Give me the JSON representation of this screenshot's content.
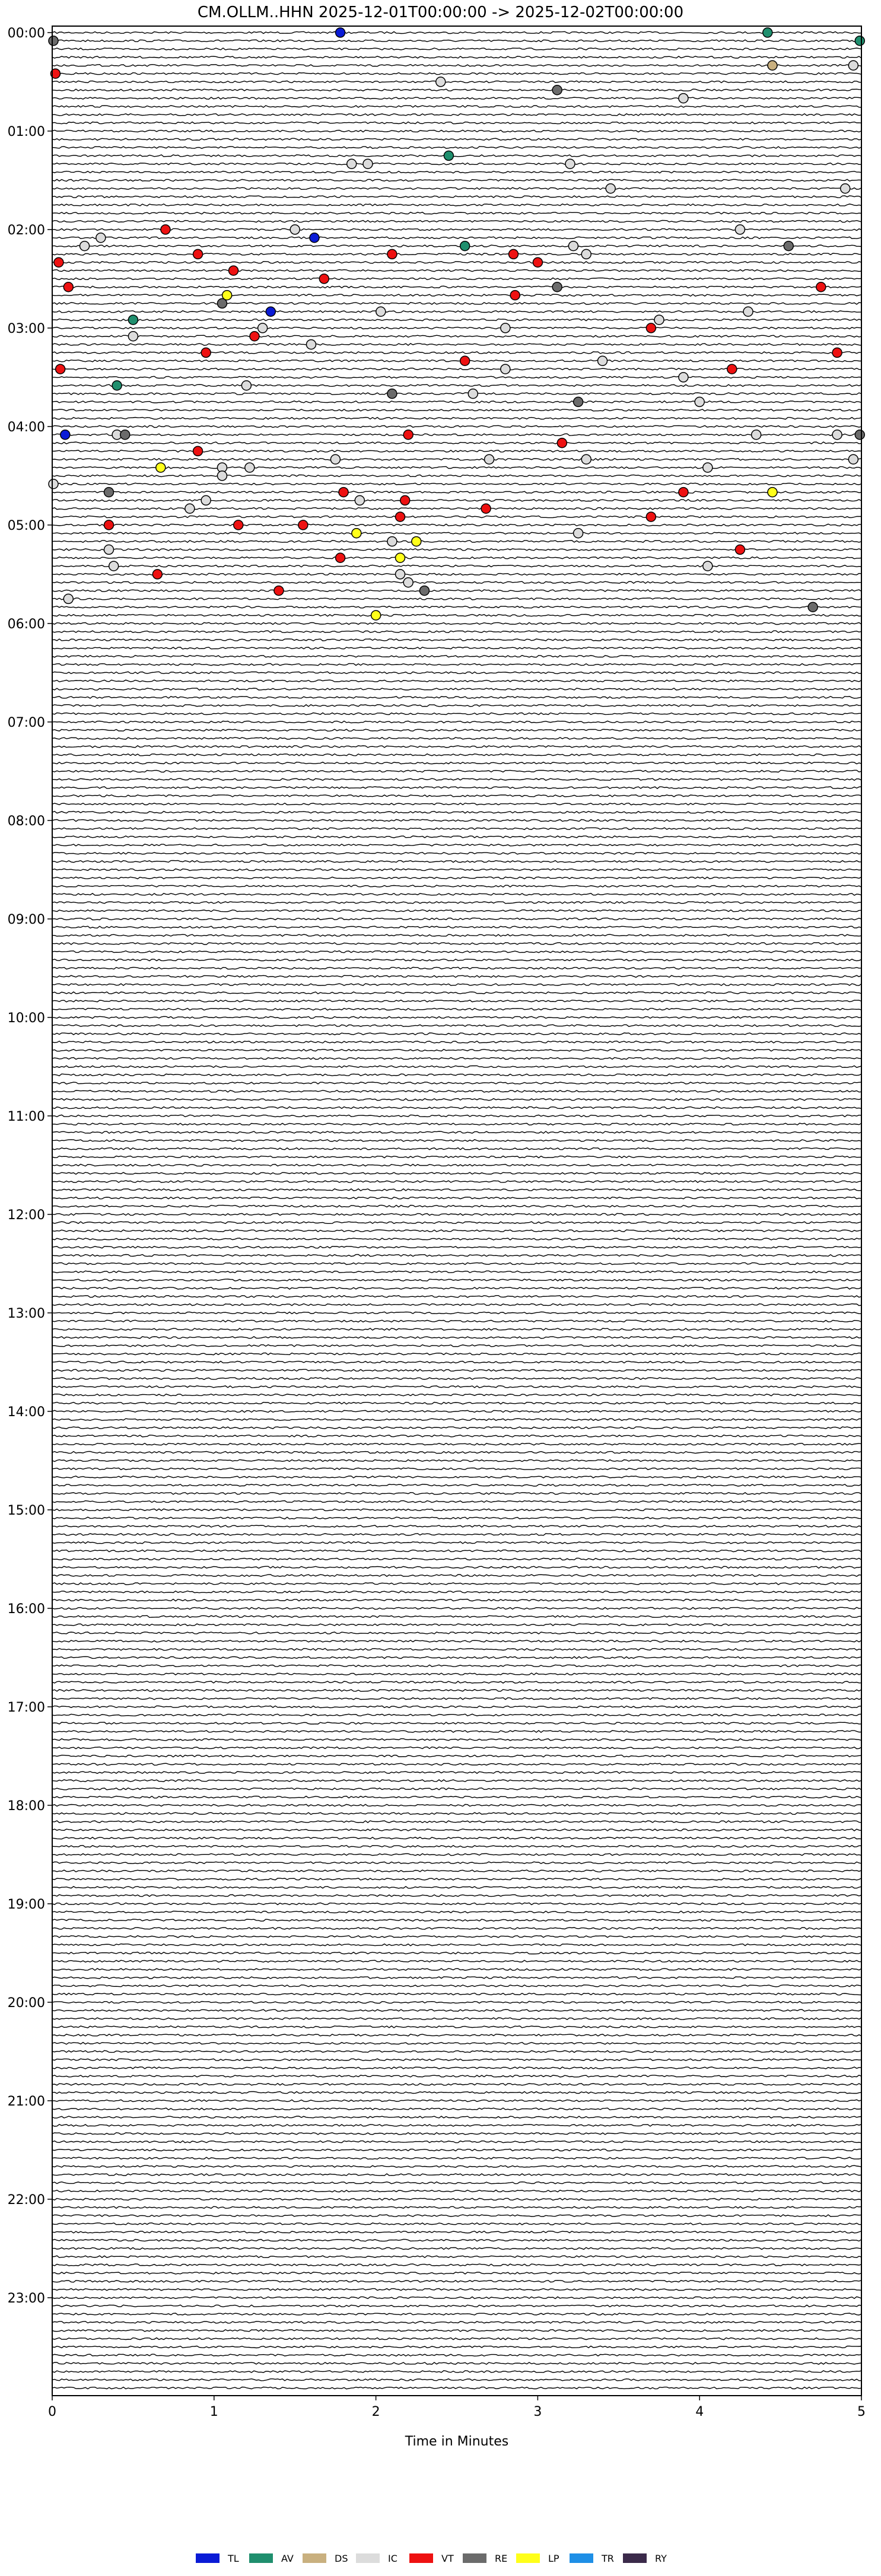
{
  "chart_data": {
    "type": "helicorder",
    "title": "CM.OLLM..HHN  2025-12-01T00:00:00 -> 2025-12-02T00:00:00",
    "xlabel": "Time in Minutes",
    "xlim": [
      0,
      5
    ],
    "x_ticks": [
      "0",
      "1",
      "2",
      "3",
      "4",
      "5"
    ],
    "y_ticks": [
      "00:00",
      "01:00",
      "02:00",
      "03:00",
      "04:00",
      "05:00",
      "06:00",
      "07:00",
      "08:00",
      "09:00",
      "10:00",
      "11:00",
      "12:00",
      "13:00",
      "14:00",
      "15:00",
      "16:00",
      "17:00",
      "18:00",
      "19:00",
      "20:00",
      "21:00",
      "22:00",
      "23:00"
    ],
    "traces_per_hour": 12,
    "minutes_per_trace": 5,
    "legend": [
      {
        "code": "TL",
        "color": "#0a1bd6"
      },
      {
        "code": "AV",
        "color": "#1f8f6e"
      },
      {
        "code": "DS",
        "color": "#c9b07f"
      },
      {
        "code": "IC",
        "color": "#dcdcdc"
      },
      {
        "code": "VT",
        "color": "#ee1111"
      },
      {
        "code": "RE",
        "color": "#6b6b6b"
      },
      {
        "code": "LP",
        "color": "#ffff1a"
      },
      {
        "code": "TR",
        "color": "#1e8fe6"
      },
      {
        "code": "RY",
        "color": "#3b2a4a"
      }
    ],
    "events": [
      {
        "t": "00:00",
        "x": 1.78,
        "c": "TL"
      },
      {
        "t": "00:00",
        "x": 4.42,
        "c": "AV"
      },
      {
        "t": "00:05",
        "x": 0.0,
        "c": "RE"
      },
      {
        "t": "00:05",
        "x": 4.99,
        "c": "AV"
      },
      {
        "t": "00:20",
        "x": 4.45,
        "c": "DS"
      },
      {
        "t": "00:20",
        "x": 4.95,
        "c": "IC"
      },
      {
        "t": "00:25",
        "x": 0.02,
        "c": "VT"
      },
      {
        "t": "00:30",
        "x": 2.4,
        "c": "IC"
      },
      {
        "t": "00:35",
        "x": 3.12,
        "c": "RE"
      },
      {
        "t": "00:40",
        "x": 3.9,
        "c": "IC"
      },
      {
        "t": "01:15",
        "x": 2.45,
        "c": "AV"
      },
      {
        "t": "01:20",
        "x": 1.85,
        "c": "IC"
      },
      {
        "t": "01:20",
        "x": 1.95,
        "c": "IC"
      },
      {
        "t": "01:20",
        "x": 3.2,
        "c": "IC"
      },
      {
        "t": "01:35",
        "x": 3.45,
        "c": "IC"
      },
      {
        "t": "01:35",
        "x": 4.9,
        "c": "IC"
      },
      {
        "t": "02:00",
        "x": 0.7,
        "c": "VT"
      },
      {
        "t": "02:00",
        "x": 1.5,
        "c": "IC"
      },
      {
        "t": "02:00",
        "x": 4.25,
        "c": "IC"
      },
      {
        "t": "02:05",
        "x": 0.3,
        "c": "IC"
      },
      {
        "t": "02:05",
        "x": 1.62,
        "c": "TL"
      },
      {
        "t": "02:10",
        "x": 0.2,
        "c": "IC"
      },
      {
        "t": "02:10",
        "x": 2.55,
        "c": "AV"
      },
      {
        "t": "02:10",
        "x": 3.22,
        "c": "IC"
      },
      {
        "t": "02:10",
        "x": 4.55,
        "c": "RE"
      },
      {
        "t": "02:15",
        "x": 0.9,
        "c": "VT"
      },
      {
        "t": "02:15",
        "x": 2.1,
        "c": "VT"
      },
      {
        "t": "02:15",
        "x": 2.85,
        "c": "VT"
      },
      {
        "t": "02:15",
        "x": 3.3,
        "c": "IC"
      },
      {
        "t": "02:20",
        "x": 0.04,
        "c": "VT"
      },
      {
        "t": "02:20",
        "x": 3.0,
        "c": "VT"
      },
      {
        "t": "02:25",
        "x": 1.12,
        "c": "VT"
      },
      {
        "t": "02:30",
        "x": 1.68,
        "c": "VT"
      },
      {
        "t": "02:35",
        "x": 0.1,
        "c": "VT"
      },
      {
        "t": "02:35",
        "x": 3.12,
        "c": "RE"
      },
      {
        "t": "02:35",
        "x": 4.75,
        "c": "VT"
      },
      {
        "t": "02:40",
        "x": 1.08,
        "c": "LP"
      },
      {
        "t": "02:40",
        "x": 2.86,
        "c": "VT"
      },
      {
        "t": "02:45",
        "x": 1.05,
        "c": "RE"
      },
      {
        "t": "02:50",
        "x": 1.35,
        "c": "TL"
      },
      {
        "t": "02:50",
        "x": 2.03,
        "c": "IC"
      },
      {
        "t": "02:50",
        "x": 4.3,
        "c": "IC"
      },
      {
        "t": "02:55",
        "x": 0.5,
        "c": "AV"
      },
      {
        "t": "02:55",
        "x": 3.75,
        "c": "IC"
      },
      {
        "t": "03:00",
        "x": 1.3,
        "c": "IC"
      },
      {
        "t": "03:00",
        "x": 2.8,
        "c": "IC"
      },
      {
        "t": "03:00",
        "x": 3.7,
        "c": "VT"
      },
      {
        "t": "03:05",
        "x": 0.5,
        "c": "IC"
      },
      {
        "t": "03:05",
        "x": 1.25,
        "c": "VT"
      },
      {
        "t": "03:10",
        "x": 1.6,
        "c": "IC"
      },
      {
        "t": "03:15",
        "x": 4.85,
        "c": "VT"
      },
      {
        "t": "03:15",
        "x": 0.95,
        "c": "VT"
      },
      {
        "t": "03:20",
        "x": 2.55,
        "c": "VT"
      },
      {
        "t": "03:20",
        "x": 3.4,
        "c": "IC"
      },
      {
        "t": "03:25",
        "x": 0.05,
        "c": "VT"
      },
      {
        "t": "03:25",
        "x": 2.8,
        "c": "IC"
      },
      {
        "t": "03:25",
        "x": 4.2,
        "c": "VT"
      },
      {
        "t": "03:30",
        "x": 3.9,
        "c": "IC"
      },
      {
        "t": "03:35",
        "x": 0.4,
        "c": "AV"
      },
      {
        "t": "03:35",
        "x": 1.2,
        "c": "IC"
      },
      {
        "t": "03:40",
        "x": 2.1,
        "c": "RE"
      },
      {
        "t": "03:40",
        "x": 2.6,
        "c": "IC"
      },
      {
        "t": "03:45",
        "x": 3.25,
        "c": "RE"
      },
      {
        "t": "03:45",
        "x": 4.0,
        "c": "IC"
      },
      {
        "t": "04:05",
        "x": 0.08,
        "c": "TL"
      },
      {
        "t": "04:05",
        "x": 0.4,
        "c": "IC"
      },
      {
        "t": "04:05",
        "x": 0.45,
        "c": "RE"
      },
      {
        "t": "04:05",
        "x": 2.2,
        "c": "VT"
      },
      {
        "t": "04:05",
        "x": 4.35,
        "c": "IC"
      },
      {
        "t": "04:05",
        "x": 4.85,
        "c": "IC"
      },
      {
        "t": "04:05",
        "x": 4.99,
        "c": "RE"
      },
      {
        "t": "04:10",
        "x": 3.15,
        "c": "VT"
      },
      {
        "t": "04:15",
        "x": 0.9,
        "c": "VT"
      },
      {
        "t": "04:20",
        "x": 1.75,
        "c": "IC"
      },
      {
        "t": "04:20",
        "x": 2.7,
        "c": "IC"
      },
      {
        "t": "04:20",
        "x": 3.3,
        "c": "IC"
      },
      {
        "t": "04:20",
        "x": 4.95,
        "c": "IC"
      },
      {
        "t": "04:25",
        "x": 0.67,
        "c": "LP"
      },
      {
        "t": "04:25",
        "x": 1.05,
        "c": "IC"
      },
      {
        "t": "04:25",
        "x": 1.22,
        "c": "IC"
      },
      {
        "t": "04:25",
        "x": 4.05,
        "c": "IC"
      },
      {
        "t": "04:30",
        "x": 1.05,
        "c": "IC"
      },
      {
        "t": "04:35",
        "x": 0.0,
        "c": "IC"
      },
      {
        "t": "04:40",
        "x": 0.35,
        "c": "RE"
      },
      {
        "t": "04:40",
        "x": 1.8,
        "c": "VT"
      },
      {
        "t": "04:40",
        "x": 3.9,
        "c": "VT"
      },
      {
        "t": "04:40",
        "x": 4.45,
        "c": "LP"
      },
      {
        "t": "04:45",
        "x": 0.95,
        "c": "IC"
      },
      {
        "t": "04:45",
        "x": 1.9,
        "c": "IC"
      },
      {
        "t": "04:45",
        "x": 2.18,
        "c": "VT"
      },
      {
        "t": "04:50",
        "x": 0.85,
        "c": "IC"
      },
      {
        "t": "04:50",
        "x": 2.68,
        "c": "VT"
      },
      {
        "t": "04:55",
        "x": 3.7,
        "c": "VT"
      },
      {
        "t": "04:55",
        "x": 2.15,
        "c": "VT"
      },
      {
        "t": "05:00",
        "x": 0.35,
        "c": "VT"
      },
      {
        "t": "05:00",
        "x": 1.15,
        "c": "VT"
      },
      {
        "t": "05:00",
        "x": 1.55,
        "c": "VT"
      },
      {
        "t": "05:05",
        "x": 3.25,
        "c": "IC"
      },
      {
        "t": "05:05",
        "x": 1.88,
        "c": "LP"
      },
      {
        "t": "05:10",
        "x": 2.1,
        "c": "IC"
      },
      {
        "t": "05:10",
        "x": 2.25,
        "c": "LP"
      },
      {
        "t": "05:15",
        "x": 0.35,
        "c": "IC"
      },
      {
        "t": "05:15",
        "x": 4.25,
        "c": "VT"
      },
      {
        "t": "05:20",
        "x": 2.15,
        "c": "LP"
      },
      {
        "t": "05:20",
        "x": 1.78,
        "c": "VT"
      },
      {
        "t": "05:25",
        "x": 0.38,
        "c": "IC"
      },
      {
        "t": "05:25",
        "x": 4.05,
        "c": "IC"
      },
      {
        "t": "05:30",
        "x": 0.65,
        "c": "VT"
      },
      {
        "t": "05:30",
        "x": 2.15,
        "c": "IC"
      },
      {
        "t": "05:35",
        "x": 2.2,
        "c": "IC"
      },
      {
        "t": "05:40",
        "x": 2.3,
        "c": "RE"
      },
      {
        "t": "05:40",
        "x": 1.4,
        "c": "VT"
      },
      {
        "t": "05:45",
        "x": 0.1,
        "c": "IC"
      },
      {
        "t": "05:50",
        "x": 4.7,
        "c": "RE"
      },
      {
        "t": "05:55",
        "x": 2.0,
        "c": "LP"
      }
    ]
  }
}
